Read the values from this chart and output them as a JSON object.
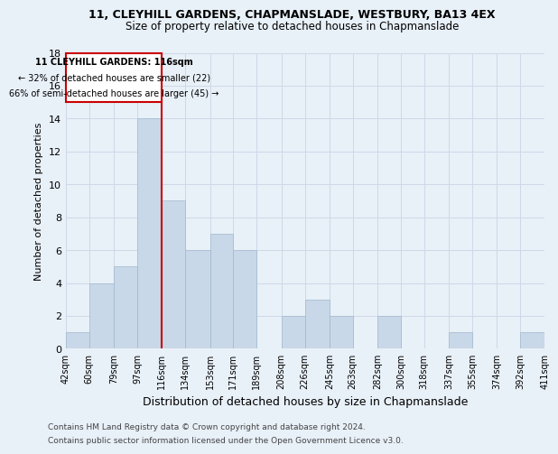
{
  "title1": "11, CLEYHILL GARDENS, CHAPMANSLADE, WESTBURY, BA13 4EX",
  "title2": "Size of property relative to detached houses in Chapmanslade",
  "xlabel": "Distribution of detached houses by size in Chapmanslade",
  "ylabel": "Number of detached properties",
  "footer1": "Contains HM Land Registry data © Crown copyright and database right 2024.",
  "footer2": "Contains public sector information licensed under the Open Government Licence v3.0.",
  "annotation_line1": "11 CLEYHILL GARDENS: 116sqm",
  "annotation_line2": "← 32% of detached houses are smaller (22)",
  "annotation_line3": "66% of semi-detached houses are larger (45) →",
  "property_size": 116,
  "bin_labels": [
    "42sqm",
    "60sqm",
    "79sqm",
    "97sqm",
    "116sqm",
    "134sqm",
    "153sqm",
    "171sqm",
    "189sqm",
    "208sqm",
    "226sqm",
    "245sqm",
    "263sqm",
    "282sqm",
    "300sqm",
    "318sqm",
    "337sqm",
    "355sqm",
    "374sqm",
    "392sqm",
    "411sqm"
  ],
  "bin_edges": [
    42,
    60,
    79,
    97,
    116,
    134,
    153,
    171,
    189,
    208,
    226,
    245,
    263,
    282,
    300,
    318,
    337,
    355,
    374,
    392,
    411
  ],
  "counts": [
    1,
    4,
    5,
    14,
    9,
    6,
    7,
    6,
    0,
    2,
    3,
    2,
    0,
    2,
    0,
    0,
    1,
    0,
    0,
    1
  ],
  "bar_color": "#c8d8e8",
  "bar_edge_color": "#a0b8cc",
  "vline_color": "#cc0000",
  "vline_x": 116,
  "annotation_box_color": "#cc0000",
  "grid_color": "#d0d8e8",
  "background_color": "#e8f0f8",
  "ylim": [
    0,
    18
  ],
  "yticks": [
    0,
    2,
    4,
    6,
    8,
    10,
    12,
    14,
    16,
    18
  ]
}
